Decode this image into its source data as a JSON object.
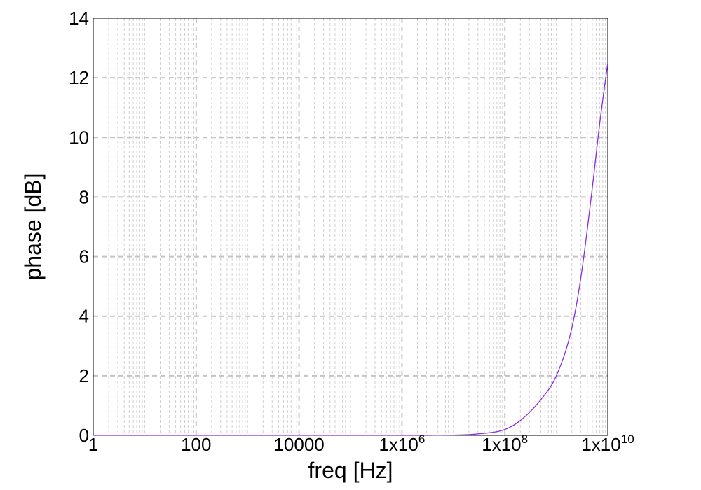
{
  "chart_data": {
    "type": "line",
    "title": "",
    "xlabel": "freq [Hz]",
    "ylabel": "phase [dB]",
    "xscale": "log",
    "xlim": [
      1,
      10000000000
    ],
    "ylim": [
      0,
      14
    ],
    "grid": true,
    "legend": "none",
    "x_tick_values": [
      1,
      100,
      10000,
      1000000,
      100000000,
      10000000000
    ],
    "x_tick_labels": [
      {
        "base": "1",
        "exp": ""
      },
      {
        "base": "100",
        "exp": ""
      },
      {
        "base": "10000",
        "exp": ""
      },
      {
        "base": "1x10",
        "exp": "6"
      },
      {
        "base": "1x10",
        "exp": "8"
      },
      {
        "base": "1x10",
        "exp": "10"
      }
    ],
    "y_ticks": [
      0,
      2,
      4,
      6,
      8,
      10,
      12,
      14
    ],
    "series": [
      {
        "color": "#8a2be2",
        "x": [
          1,
          100,
          10000,
          1000000,
          10000000,
          30000000,
          100000000,
          200000000,
          500000000,
          1000000000,
          2000000000,
          3000000000,
          5000000000,
          7000000000,
          10000000000
        ],
        "y": [
          0,
          0,
          0,
          0,
          0.01,
          0.05,
          0.2,
          0.5,
          1.2,
          2.0,
          3.6,
          5.3,
          8.3,
          10.5,
          12.5
        ]
      }
    ]
  }
}
